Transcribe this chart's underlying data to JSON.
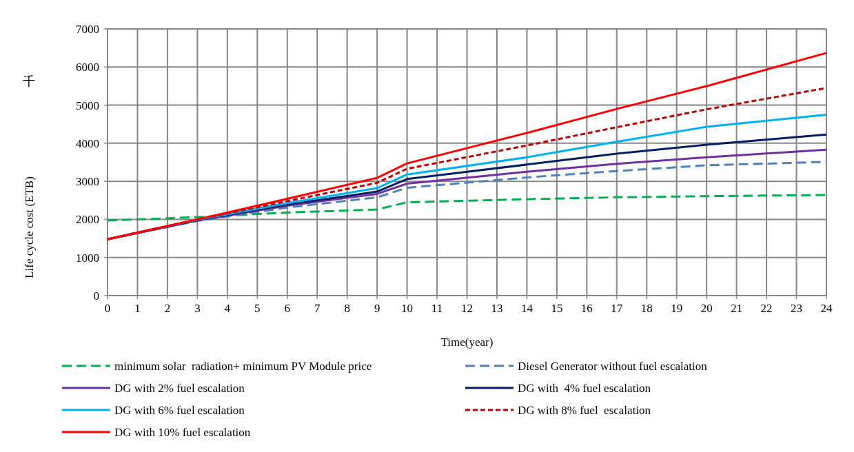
{
  "chart_data": {
    "type": "line",
    "xlabel": "Time(year)",
    "ylabel": "Life cycle cost (ETB)",
    "annotations": [
      "千"
    ],
    "xlim": [
      0,
      24
    ],
    "xticks": [
      0,
      1,
      2,
      3,
      4,
      5,
      6,
      7,
      8,
      9,
      10,
      11,
      12,
      13,
      14,
      15,
      16,
      17,
      18,
      19,
      20,
      21,
      22,
      23,
      24
    ],
    "ylim": [
      0,
      7000
    ],
    "yticks": [
      0,
      1000,
      2000,
      3000,
      4000,
      5000,
      6000,
      7000
    ],
    "grid": true,
    "legend": "bottom",
    "marker": "none",
    "series": [
      {
        "name": "minimum solar  radiation+ minimum PV Module price",
        "color": "#00b050",
        "line_style": "dashed",
        "x": [
          0,
          3,
          6,
          9,
          10,
          14,
          17,
          20,
          24
        ],
        "values": [
          1970,
          2060,
          2180,
          2260,
          2450,
          2530,
          2580,
          2610,
          2640
        ]
      },
      {
        "name": "Diesel Generator without fuel escalation",
        "color": "#4f81bd",
        "line_style": "dashed",
        "x": [
          0,
          3,
          6,
          9,
          10,
          14,
          17,
          20,
          24
        ],
        "values": [
          1480,
          1960,
          2310,
          2580,
          2830,
          3100,
          3270,
          3420,
          3510
        ]
      },
      {
        "name": "DG with 2% fuel escalation",
        "color": "#7030a0",
        "line_style": "solid",
        "x": [
          0,
          3,
          6,
          9,
          10,
          14,
          17,
          20,
          24
        ],
        "values": [
          1480,
          1970,
          2360,
          2670,
          2940,
          3250,
          3460,
          3630,
          3830
        ]
      },
      {
        "name": "DG with  4% fuel escalation",
        "color": "#002060",
        "line_style": "solid",
        "x": [
          0,
          3,
          6,
          9,
          10,
          14,
          17,
          20,
          24
        ],
        "values": [
          1480,
          1980,
          2390,
          2730,
          3060,
          3440,
          3725,
          3960,
          4230
        ]
      },
      {
        "name": "DG with 6% fuel escalation",
        "color": "#00b0f0",
        "line_style": "solid",
        "x": [
          0,
          3,
          6,
          9,
          10,
          14,
          17,
          20,
          24
        ],
        "values": [
          1480,
          1990,
          2430,
          2820,
          3180,
          3630,
          4040,
          4430,
          4750
        ]
      },
      {
        "name": "DG with 8% fuel  escalation",
        "color": "#c00000",
        "line_style": "dotted",
        "x": [
          0,
          3,
          6,
          9,
          10,
          14,
          17,
          20,
          24
        ],
        "values": [
          1480,
          2000,
          2480,
          2960,
          3330,
          3940,
          4420,
          4890,
          5450
        ]
      },
      {
        "name": "DG with 10% fuel escalation",
        "color": "#ff0000",
        "line_style": "solid",
        "x": [
          0,
          3,
          6,
          9,
          10,
          14,
          17,
          20,
          24
        ],
        "values": [
          1480,
          2000,
          2540,
          3090,
          3470,
          4270,
          4900,
          5500,
          6370
        ]
      }
    ]
  }
}
